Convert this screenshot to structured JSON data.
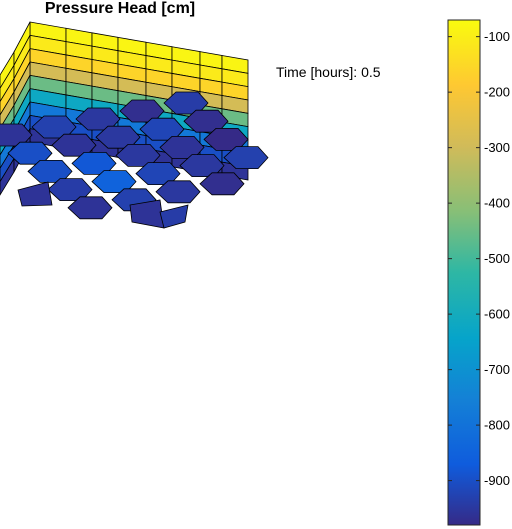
{
  "title": "Pressure Head [cm]",
  "time_label": "Time [hours]:",
  "time_value": "0.5",
  "chart_data": {
    "type": "heatmap",
    "title": "Pressure Head [cm]",
    "description": "3D cell grid colored by pressure head",
    "colorbar": {
      "ticks": [
        -100,
        -200,
        -300,
        -400,
        -500,
        -600,
        -700,
        -800,
        -900
      ],
      "tick_labels": [
        "-100",
        "-200",
        "-300",
        "-400",
        "-500",
        "-600",
        "-700",
        "-800",
        "-900"
      ],
      "range": [
        -980,
        -70
      ],
      "colormap": "parula"
    },
    "layers_side_wall": [
      -85,
      -110,
      -160,
      -290,
      -450,
      -620,
      -780,
      -900,
      -960
    ],
    "top_cells": [
      -960,
      -930,
      -950,
      -970,
      -940,
      -900,
      -960,
      -950,
      -920,
      -970,
      -900,
      -880,
      -950,
      -960,
      -980,
      -940,
      -850,
      -920,
      -950,
      -930
    ]
  }
}
